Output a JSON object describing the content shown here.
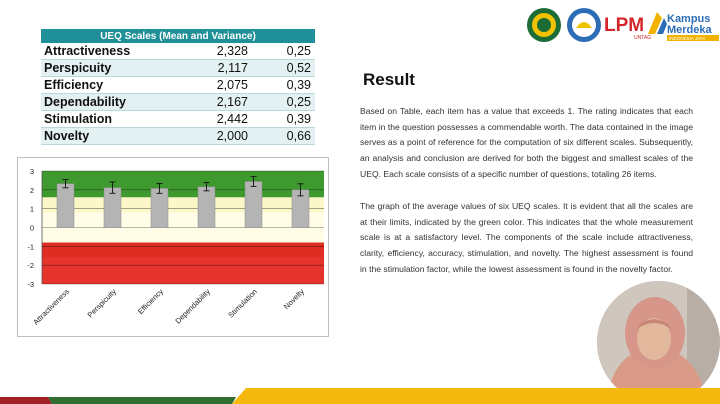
{
  "table": {
    "header": "UEQ Scales (Mean and Variance)",
    "rows": [
      {
        "scale": "Attractiveness",
        "mean": "2,328",
        "variance": "0,25"
      },
      {
        "scale": "Perspicuity",
        "mean": "2,117",
        "variance": "0,52"
      },
      {
        "scale": "Efficiency",
        "mean": "2,075",
        "variance": "0,39"
      },
      {
        "scale": "Dependability",
        "mean": "2,167",
        "variance": "0,25"
      },
      {
        "scale": "Stimulation",
        "mean": "2,442",
        "variance": "0,39"
      },
      {
        "scale": "Novelty",
        "mean": "2,000",
        "variance": "0,66"
      }
    ]
  },
  "chart_data": {
    "type": "bar",
    "categories": [
      "Attractiveness",
      "Perspicuity",
      "Efficiency",
      "Dependability",
      "Stimulation",
      "Novelty"
    ],
    "values": [
      2.328,
      2.117,
      2.075,
      2.167,
      2.442,
      2.0
    ],
    "error": [
      0.22,
      0.3,
      0.26,
      0.22,
      0.26,
      0.32
    ],
    "ylim": [
      -3,
      3
    ],
    "yticks": [
      "3",
      "2",
      "1",
      "0",
      "-1",
      "-2",
      "-3"
    ],
    "bands": [
      {
        "from": 1.6,
        "to": 3,
        "color": "#3e9a2e"
      },
      {
        "from": 0.8,
        "to": 1.6,
        "color": "#fbf7c8"
      },
      {
        "from": -0.8,
        "to": 0.8,
        "color": "#fffde6"
      },
      {
        "from": -3,
        "to": -0.8,
        "color": "#e5342b"
      }
    ],
    "bar_color": "#b4b4b4",
    "grid": true,
    "legend": "none"
  },
  "result": {
    "heading": "Result",
    "paragraph1": "Based on Table, each item has a value that exceeds 1. The rating indicates that each item in the question possesses a commendable worth. The data contained in the image serves as a point of reference for the computation of six different scales. Subsequently, an analysis and conclusion are derived for both the biggest and smallest scales of the UEQ. Each scale consists of a specific number of questions, totaling 26 items.",
    "paragraph2": "The graph of the average values of six UEQ scales. It is evident that all the scales are at their limits, indicated by the green color. This indicates that the whole measurement scale is at a satisfactory level. The components of the scale include attractiveness, clarity, efficiency, accuracy, stimulation, and novelty. The highest assessment is found in the stimulation factor, while the lowest assessment is found in the novelty factor."
  },
  "logos": {
    "lpm": "LPM",
    "lpm_sub": "UNTAG",
    "kampus": "Kampus",
    "merdeka": "Merdeka",
    "merdeka_sub": "INDONESIA JAYA"
  },
  "colors": {
    "table_header": "#1f8f98",
    "stripe_red": "#a31f24",
    "stripe_yellow": "#f5b80f",
    "lpm_red": "#d4252b",
    "kampus_blue": "#2c6db6"
  }
}
